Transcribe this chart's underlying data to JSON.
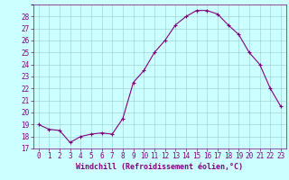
{
  "x": [
    0,
    1,
    2,
    3,
    4,
    5,
    6,
    7,
    8,
    9,
    10,
    11,
    12,
    13,
    14,
    15,
    16,
    17,
    18,
    19,
    20,
    21,
    22,
    23
  ],
  "y": [
    19.0,
    18.6,
    18.5,
    17.5,
    18.0,
    18.2,
    18.3,
    18.2,
    19.5,
    22.5,
    23.5,
    25.0,
    26.0,
    27.3,
    28.0,
    28.5,
    28.5,
    28.2,
    27.3,
    26.5,
    25.0,
    24.0,
    22.0,
    20.5
  ],
  "line_color": "#800080",
  "marker": "+",
  "marker_size": 3,
  "marker_linewidth": 0.8,
  "line_width": 0.8,
  "bg_color": "#ccffff",
  "grid_color": "#99cccc",
  "xlabel": "Windchill (Refroidissement éolien,°C)",
  "xlabel_color": "#800080",
  "tick_color": "#800080",
  "ylim": [
    17,
    29
  ],
  "xlim": [
    -0.5,
    23.5
  ],
  "yticks": [
    17,
    18,
    19,
    20,
    21,
    22,
    23,
    24,
    25,
    26,
    27,
    28
  ],
  "xticks": [
    0,
    1,
    2,
    3,
    4,
    5,
    6,
    7,
    8,
    9,
    10,
    11,
    12,
    13,
    14,
    15,
    16,
    17,
    18,
    19,
    20,
    21,
    22,
    23
  ],
  "tick_fontsize": 5.5,
  "xlabel_fontsize": 6.0
}
